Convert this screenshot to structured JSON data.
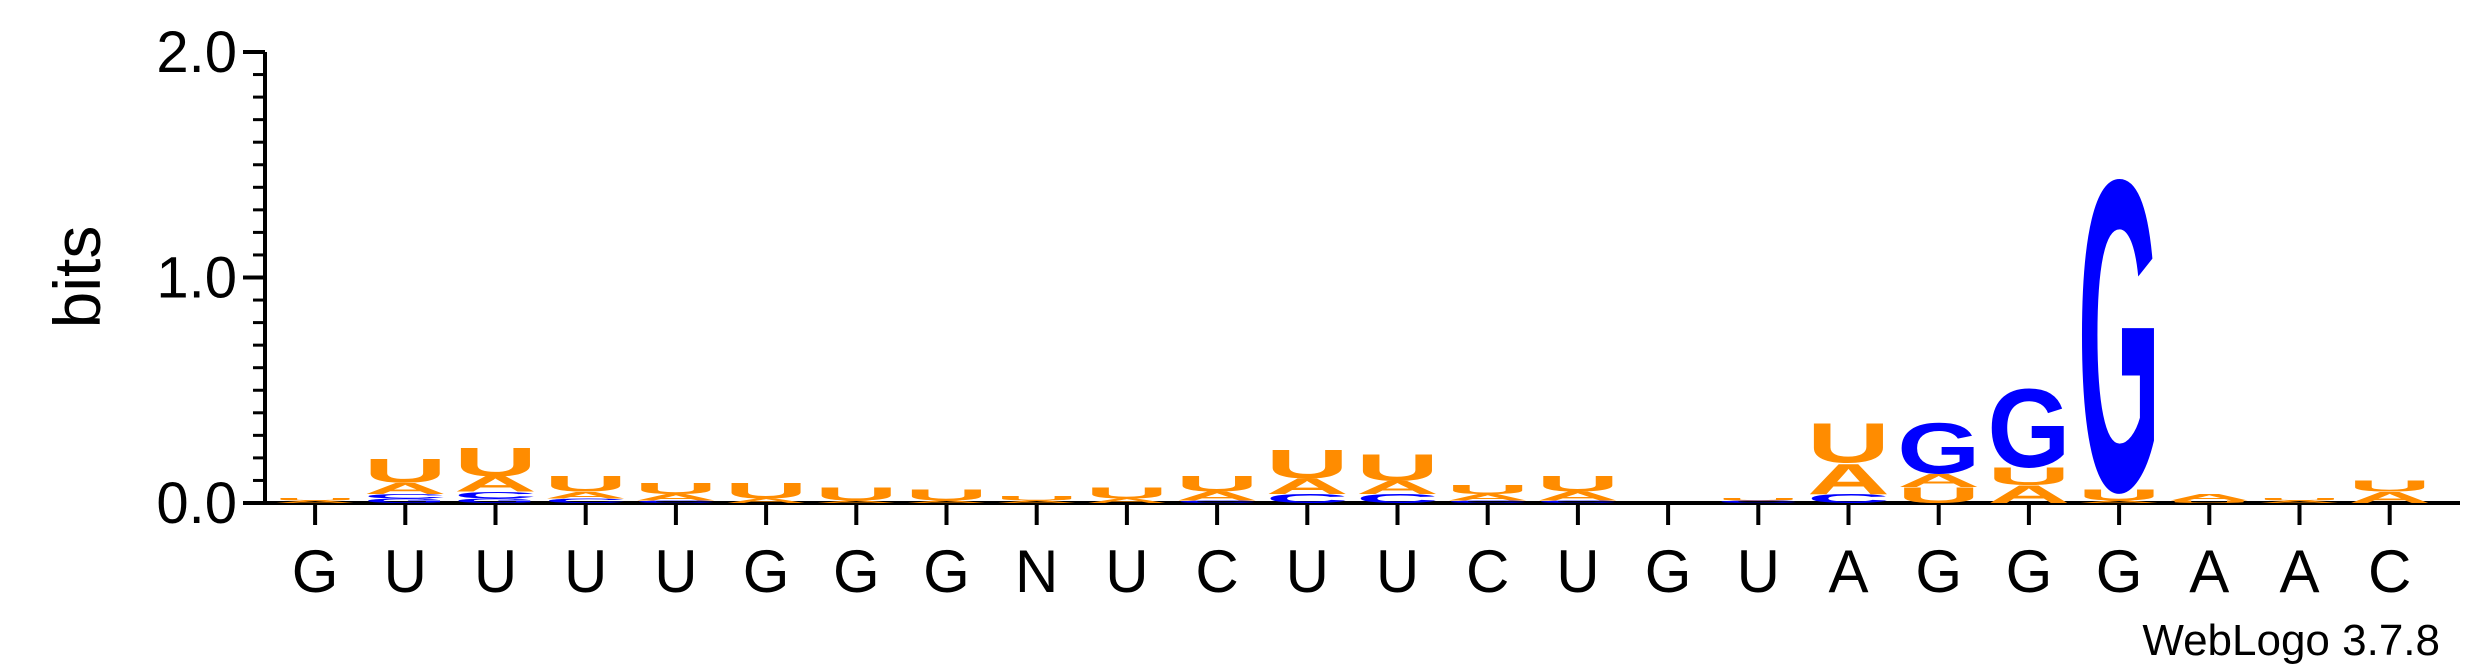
{
  "chart_data": {
    "type": "sequence-logo",
    "ylabel": "bits",
    "ylim": [
      0,
      2.0
    ],
    "yticks": [
      "0.0",
      "1.0",
      "2.0"
    ],
    "positions": [
      "G",
      "U",
      "U",
      "U",
      "U",
      "G",
      "G",
      "G",
      "N",
      "U",
      "C",
      "U",
      "U",
      "C",
      "U",
      "G",
      "U",
      "A",
      "G",
      "G",
      "G",
      "A",
      "A",
      "C"
    ],
    "columns": [
      {
        "stack": [
          {
            "base": "A",
            "bits": 0.01
          },
          {
            "base": "U",
            "bits": 0.01
          }
        ]
      },
      {
        "stack": [
          {
            "base": "G",
            "bits": 0.02
          },
          {
            "base": "C",
            "bits": 0.02
          },
          {
            "base": "A",
            "bits": 0.05
          },
          {
            "base": "U",
            "bits": 0.11
          }
        ]
      },
      {
        "stack": [
          {
            "base": "G",
            "bits": 0.02
          },
          {
            "base": "C",
            "bits": 0.03
          },
          {
            "base": "A",
            "bits": 0.07
          },
          {
            "base": "U",
            "bits": 0.13
          }
        ]
      },
      {
        "stack": [
          {
            "base": "C",
            "bits": 0.02
          },
          {
            "base": "A",
            "bits": 0.03
          },
          {
            "base": "U",
            "bits": 0.07
          }
        ]
      },
      {
        "stack": [
          {
            "base": "C",
            "bits": 0.01
          },
          {
            "base": "A",
            "bits": 0.03
          },
          {
            "base": "U",
            "bits": 0.05
          }
        ]
      },
      {
        "stack": [
          {
            "base": "A",
            "bits": 0.02
          },
          {
            "base": "U",
            "bits": 0.07
          }
        ]
      },
      {
        "stack": [
          {
            "base": "A",
            "bits": 0.01
          },
          {
            "base": "U",
            "bits": 0.06
          }
        ]
      },
      {
        "stack": [
          {
            "base": "A",
            "bits": 0.01
          },
          {
            "base": "U",
            "bits": 0.05
          }
        ]
      },
      {
        "stack": [
          {
            "base": "A",
            "bits": 0.01
          },
          {
            "base": "U",
            "bits": 0.02
          }
        ]
      },
      {
        "stack": [
          {
            "base": "A",
            "bits": 0.02
          },
          {
            "base": "U",
            "bits": 0.05
          }
        ]
      },
      {
        "stack": [
          {
            "base": "C",
            "bits": 0.01
          },
          {
            "base": "A",
            "bits": 0.04
          },
          {
            "base": "U",
            "bits": 0.07
          }
        ]
      },
      {
        "stack": [
          {
            "base": "C",
            "bits": 0.04
          },
          {
            "base": "A",
            "bits": 0.07
          },
          {
            "base": "U",
            "bits": 0.13
          }
        ]
      },
      {
        "stack": [
          {
            "base": "C",
            "bits": 0.04
          },
          {
            "base": "A",
            "bits": 0.06
          },
          {
            "base": "U",
            "bits": 0.12
          }
        ]
      },
      {
        "stack": [
          {
            "base": "C",
            "bits": 0.01
          },
          {
            "base": "A",
            "bits": 0.03
          },
          {
            "base": "U",
            "bits": 0.04
          }
        ]
      },
      {
        "stack": [
          {
            "base": "C",
            "bits": 0.01
          },
          {
            "base": "A",
            "bits": 0.04
          },
          {
            "base": "U",
            "bits": 0.07
          }
        ]
      },
      {
        "stack": []
      },
      {
        "stack": [
          {
            "base": "C",
            "bits": 0.01
          },
          {
            "base": "U",
            "bits": 0.01
          }
        ]
      },
      {
        "stack": [
          {
            "base": "C",
            "bits": 0.04
          },
          {
            "base": "A",
            "bits": 0.14
          },
          {
            "base": "U",
            "bits": 0.18
          }
        ]
      },
      {
        "stack": [
          {
            "base": "U",
            "bits": 0.07
          },
          {
            "base": "A",
            "bits": 0.06
          },
          {
            "base": "G",
            "bits": 0.23
          }
        ]
      },
      {
        "stack": [
          {
            "base": "A",
            "bits": 0.08
          },
          {
            "base": "U",
            "bits": 0.08
          },
          {
            "base": "G",
            "bits": 0.36
          }
        ]
      },
      {
        "stack": [
          {
            "base": "A",
            "bits": 0.01
          },
          {
            "base": "U",
            "bits": 0.05
          },
          {
            "base": "G",
            "bits": 1.42
          }
        ]
      },
      {
        "stack": [
          {
            "base": "U",
            "bits": 0.01
          },
          {
            "base": "A",
            "bits": 0.03
          }
        ]
      },
      {
        "stack": [
          {
            "base": "A",
            "bits": 0.01
          },
          {
            "base": "U",
            "bits": 0.01
          }
        ]
      },
      {
        "stack": [
          {
            "base": "A",
            "bits": 0.05
          },
          {
            "base": "U",
            "bits": 0.05
          }
        ]
      }
    ],
    "colors": {
      "A": "#ff8c00",
      "U": "#ff8c00",
      "G": "#0000ff",
      "C": "#0000ff",
      "N": "#000000"
    },
    "footer": "WebLogo 3.7.8"
  }
}
